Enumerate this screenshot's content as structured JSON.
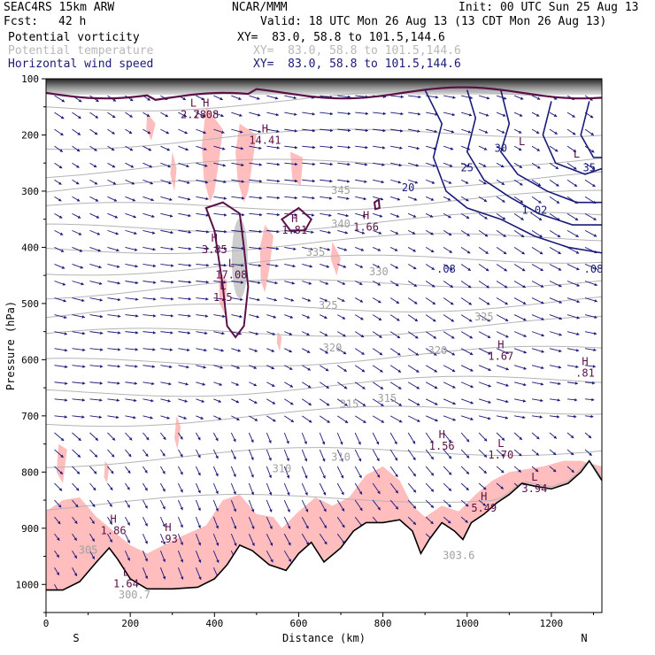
{
  "header": {
    "model": "SEAC4RS 15km ARW",
    "org": "NCAR/MMM",
    "init": "Init: 00 UTC Sun 25 Aug 13",
    "fcst_label": "Fcst:",
    "fcst_value": "42 h",
    "valid": "Valid: 18 UTC Mon 26 Aug 13 (13 CDT Mon 26 Aug 13)",
    "fields": [
      {
        "name": "Potential vorticity",
        "xy": "XY=  83.0, 58.8 to 101.5,144.6",
        "color": "#000000"
      },
      {
        "name": "Potential temperature",
        "xy": "XY=  83.0, 58.8 to 101.5,144.6",
        "color": "#b8b8b8"
      },
      {
        "name": "Horizontal wind speed",
        "xy": "XY=  83.0, 58.8 to 101.5,144.6",
        "color": "#1a1a7a"
      }
    ]
  },
  "chart_data": {
    "type": "cross-section",
    "xlabel": "Distance (km)",
    "ylabel": "Pressure (hPa)",
    "xlim": [
      0,
      1320
    ],
    "ylim": [
      1050,
      100
    ],
    "x_ticks": [
      "0",
      "200",
      "400",
      "600",
      "800",
      "1000",
      "1200"
    ],
    "y_ticks": [
      "100",
      "200",
      "300",
      "400",
      "500",
      "600",
      "700",
      "800",
      "900",
      "1000"
    ],
    "end_labels": {
      "left": "S",
      "right": "N"
    },
    "colors": {
      "pv_shade": "#ffbdbd",
      "pv_contour": "#5a1048",
      "theta": "#b4b4b4",
      "wind": "#1a1a7a",
      "terrain": "#000000"
    },
    "terrain": [
      [
        0,
        1010
      ],
      [
        40,
        1010
      ],
      [
        80,
        995
      ],
      [
        120,
        960
      ],
      [
        150,
        935
      ],
      [
        170,
        955
      ],
      [
        200,
        990
      ],
      [
        240,
        1008
      ],
      [
        300,
        1008
      ],
      [
        360,
        1005
      ],
      [
        400,
        990
      ],
      [
        430,
        965
      ],
      [
        460,
        930
      ],
      [
        490,
        940
      ],
      [
        530,
        965
      ],
      [
        570,
        975
      ],
      [
        600,
        945
      ],
      [
        630,
        925
      ],
      [
        660,
        960
      ],
      [
        700,
        935
      ],
      [
        730,
        905
      ],
      [
        760,
        890
      ],
      [
        800,
        890
      ],
      [
        840,
        885
      ],
      [
        870,
        905
      ],
      [
        890,
        945
      ],
      [
        910,
        920
      ],
      [
        940,
        890
      ],
      [
        970,
        905
      ],
      [
        990,
        920
      ],
      [
        1010,
        890
      ],
      [
        1040,
        875
      ],
      [
        1070,
        855
      ],
      [
        1100,
        840
      ],
      [
        1130,
        820
      ],
      [
        1160,
        825
      ],
      [
        1200,
        830
      ],
      [
        1240,
        820
      ],
      [
        1270,
        800
      ],
      [
        1290,
        780
      ],
      [
        1320,
        815
      ]
    ],
    "theta_labels": [
      {
        "text": "345",
        "x": 700,
        "p": 305
      },
      {
        "text": "340",
        "x": 700,
        "p": 365
      },
      {
        "text": "335",
        "x": 640,
        "p": 415
      },
      {
        "text": "330",
        "x": 790,
        "p": 450
      },
      {
        "text": "325",
        "x": 670,
        "p": 510
      },
      {
        "text": "325",
        "x": 1040,
        "p": 530
      },
      {
        "text": "320",
        "x": 680,
        "p": 585
      },
      {
        "text": "320",
        "x": 930,
        "p": 590
      },
      {
        "text": "315",
        "x": 720,
        "p": 685
      },
      {
        "text": "315",
        "x": 810,
        "p": 675
      },
      {
        "text": "310",
        "x": 560,
        "p": 800
      },
      {
        "text": "310",
        "x": 700,
        "p": 780
      },
      {
        "text": "305",
        "x": 100,
        "p": 945
      },
      {
        "text": "303.6",
        "x": 980,
        "p": 955
      },
      {
        "text": "300.7",
        "x": 210,
        "p": 1025
      }
    ],
    "wind_labels": [
      {
        "text": "20",
        "x": 860,
        "p": 300
      },
      {
        "text": "25",
        "x": 1000,
        "p": 265
      },
      {
        "text": "30",
        "x": 1080,
        "p": 230
      },
      {
        "text": "35",
        "x": 1290,
        "p": 265
      },
      {
        "text": "1.02",
        "x": 1160,
        "p": 340
      },
      {
        "text": ".08",
        "x": 950,
        "p": 445
      },
      {
        "text": ".08",
        "x": 1300,
        "p": 445
      }
    ],
    "extrema": [
      {
        "type": "L",
        "x": 350,
        "p": 150,
        "value": "2.78"
      },
      {
        "type": "H",
        "x": 380,
        "p": 150,
        "value": "2.08"
      },
      {
        "type": "H",
        "x": 520,
        "p": 195,
        "value": "14.41"
      },
      {
        "type": "L",
        "x": 1130,
        "p": 218,
        "value": ""
      },
      {
        "type": "L",
        "x": 1260,
        "p": 240,
        "value": ""
      },
      {
        "type": "H",
        "x": 590,
        "p": 355,
        "value": "1.81"
      },
      {
        "type": "H",
        "x": 760,
        "p": 350,
        "value": "1.66"
      },
      {
        "type": "H",
        "x": 400,
        "p": 390,
        "value": "3.85"
      },
      {
        "type": "L",
        "x": 440,
        "p": 435,
        "value": "17.08"
      },
      {
        "type": "L",
        "x": 420,
        "p": 475,
        "value": "1.5"
      },
      {
        "type": "H",
        "x": 1080,
        "p": 580,
        "value": "1.67"
      },
      {
        "type": "H",
        "x": 1280,
        "p": 610,
        "value": ".81"
      },
      {
        "type": "H",
        "x": 940,
        "p": 740,
        "value": "1.56"
      },
      {
        "type": "L",
        "x": 1080,
        "p": 755,
        "value": "1.70"
      },
      {
        "type": "H",
        "x": 1040,
        "p": 850,
        "value": "5.49"
      },
      {
        "type": "L",
        "x": 1160,
        "p": 815,
        "value": "3.94"
      },
      {
        "type": "H",
        "x": 160,
        "p": 890,
        "value": "1.86"
      },
      {
        "type": "H",
        "x": 290,
        "p": 905,
        "value": ".93"
      },
      {
        "type": "L",
        "x": 190,
        "p": 985,
        "value": "1.64"
      }
    ]
  }
}
